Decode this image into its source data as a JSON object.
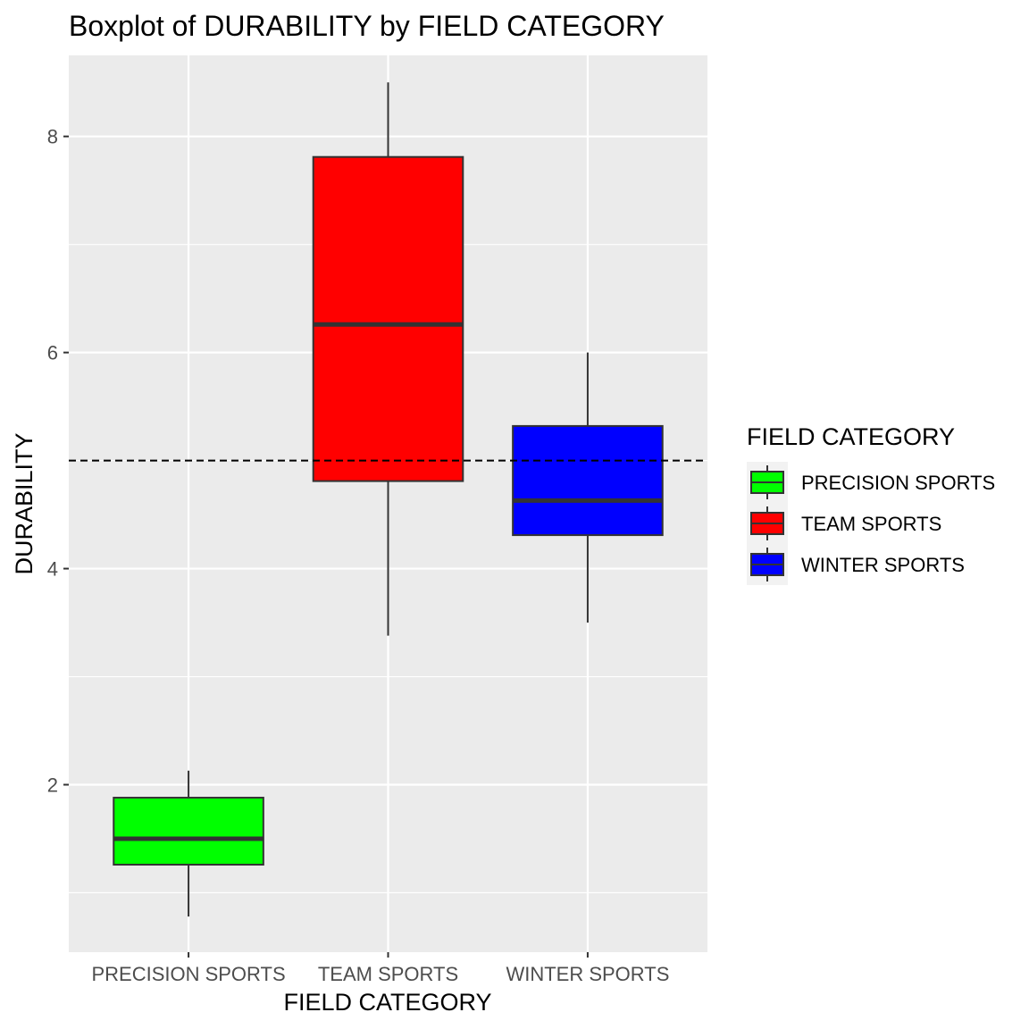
{
  "chart_data": {
    "type": "boxplot",
    "title": "Boxplot of DURABILITY by FIELD CATEGORY",
    "xlabel": "FIELD CATEGORY",
    "ylabel": "DURABILITY",
    "ylim": [
      0.45,
      8.75
    ],
    "yticks": [
      2,
      4,
      6,
      8
    ],
    "grid": true,
    "background": "#ebebeb",
    "reference_line": {
      "y": 5.0,
      "style": "dashed",
      "color": "#000000"
    },
    "categories": [
      "PRECISION SPORTS",
      "TEAM SPORTS",
      "WINTER SPORTS"
    ],
    "boxes": [
      {
        "category": "PRECISION SPORTS",
        "min": 0.78,
        "q1": 1.26,
        "median": 1.5,
        "q3": 1.88,
        "max": 2.13,
        "color": "#00ff00"
      },
      {
        "category": "TEAM SPORTS",
        "min": 3.38,
        "q1": 4.81,
        "median": 6.26,
        "q3": 7.81,
        "max": 8.5,
        "color": "#ff0000"
      },
      {
        "category": "WINTER SPORTS",
        "min": 3.5,
        "q1": 4.31,
        "median": 4.63,
        "q3": 5.32,
        "max": 6.0,
        "color": "#0000ff"
      }
    ],
    "legend": {
      "title": "FIELD CATEGORY",
      "position": "right",
      "items": [
        "PRECISION SPORTS",
        "TEAM SPORTS",
        "WINTER SPORTS"
      ]
    }
  }
}
